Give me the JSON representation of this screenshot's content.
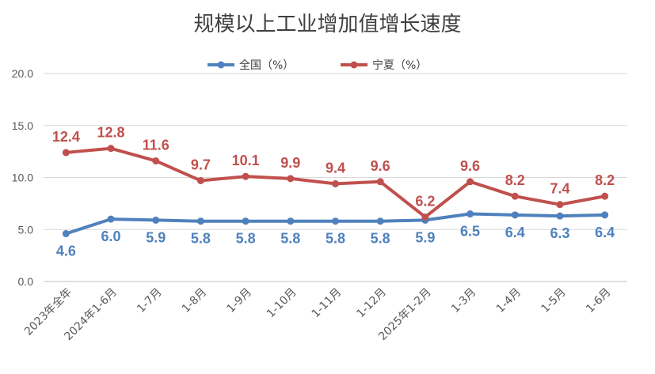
{
  "chart_data": {
    "type": "line",
    "title": "规模以上工业增加值增长速度",
    "categories": [
      "2023年全年",
      "2024年1-6月",
      "1-7月",
      "1-8月",
      "1-9月",
      "1-10月",
      "1-11月",
      "1-12月",
      "2025年1-2月",
      "1-3月",
      "1-4月",
      "1-5月",
      "1-6月"
    ],
    "series": [
      {
        "name": "全国（%）",
        "color": "#4F81BD",
        "values": [
          4.6,
          6.0,
          5.9,
          5.8,
          5.8,
          5.8,
          5.8,
          5.8,
          5.9,
          6.5,
          6.4,
          6.3,
          6.4
        ]
      },
      {
        "name": "宁夏（%）",
        "color": "#C0504D",
        "values": [
          12.4,
          12.8,
          11.6,
          9.7,
          10.1,
          9.9,
          9.4,
          9.6,
          6.2,
          9.6,
          8.2,
          7.4,
          8.2
        ]
      }
    ],
    "ylim": [
      0,
      20
    ],
    "yticks": [
      "0.0",
      "5.0",
      "10.0",
      "15.0",
      "20.0"
    ],
    "grid": true,
    "legend": "top"
  }
}
